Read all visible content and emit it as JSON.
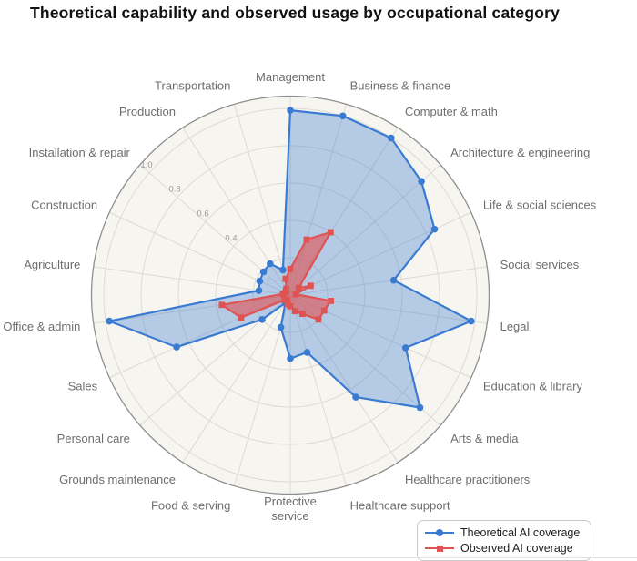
{
  "title": "Theoretical capability and observed usage by occupational category",
  "legend": {
    "items": [
      {
        "label": "Theoretical AI coverage",
        "marker": "circle"
      },
      {
        "label": "Observed AI coverage",
        "marker": "square"
      }
    ]
  },
  "colors": {
    "page_bg": "#ffffff",
    "polar_bg": "#f7f5f0",
    "grid": "#dcdad3",
    "axis_outline": "#8f8f8f",
    "tick_label": "#999999",
    "category_label": "#6e6e6e",
    "title": "#111111",
    "theoretical": "#3a7bd2",
    "theoretical_fill": "rgba(58,123,210,0.35)",
    "observed": "#e05353",
    "observed_fill": "rgba(224,83,83,0.62)",
    "legend_border": "#c9c9c9",
    "legend_text": "#1f1f1f"
  },
  "chart_data": {
    "type": "radar",
    "title": "Theoretical capability and observed usage by occupational category",
    "direction": "clockwise",
    "start_angle": "top",
    "radial_range": [
      0,
      1.0
    ],
    "radial_ticks": [
      "0.4",
      "0.6",
      "0.8",
      "1.0"
    ],
    "grid_rings": [
      0.2,
      0.4,
      0.6,
      0.8,
      1.0
    ],
    "grid": "on",
    "legend_position": "bottom-right",
    "categories": [
      "Management",
      "Business & finance",
      "Computer & math",
      "Architecture & engineering",
      "Life & social sciences",
      "Social services",
      "Legal",
      "Education & library",
      "Arts & media",
      "Healthcare practitioners",
      "Healthcare support",
      "Protective\nservice",
      "Food & serving",
      "Grounds maintenance",
      "Personal care",
      "Sales",
      "Office & admin",
      "Agriculture",
      "Construction",
      "Installation & repair",
      "Production",
      "Transportation"
    ],
    "series": [
      {
        "name": "Theoretical AI coverage",
        "marker": "circle",
        "values": [
          0.99,
          1.0,
          1.0,
          0.93,
          0.85,
          0.56,
          0.98,
          0.68,
          0.92,
          0.65,
          0.32,
          0.34,
          0.18,
          0.05,
          0.2,
          0.67,
          0.98,
          0.17,
          0.18,
          0.19,
          0.2,
          0.14
        ]
      },
      {
        "name": "Observed AI coverage",
        "marker": "square",
        "values": [
          0.14,
          0.31,
          0.4,
          0.06,
          0.12,
          0.03,
          0.22,
          0.2,
          0.2,
          0.12,
          0.09,
          0.06,
          0.05,
          0.03,
          0.04,
          0.29,
          0.37,
          0.04,
          0.03,
          0.03,
          0.04,
          0.09
        ]
      }
    ]
  }
}
